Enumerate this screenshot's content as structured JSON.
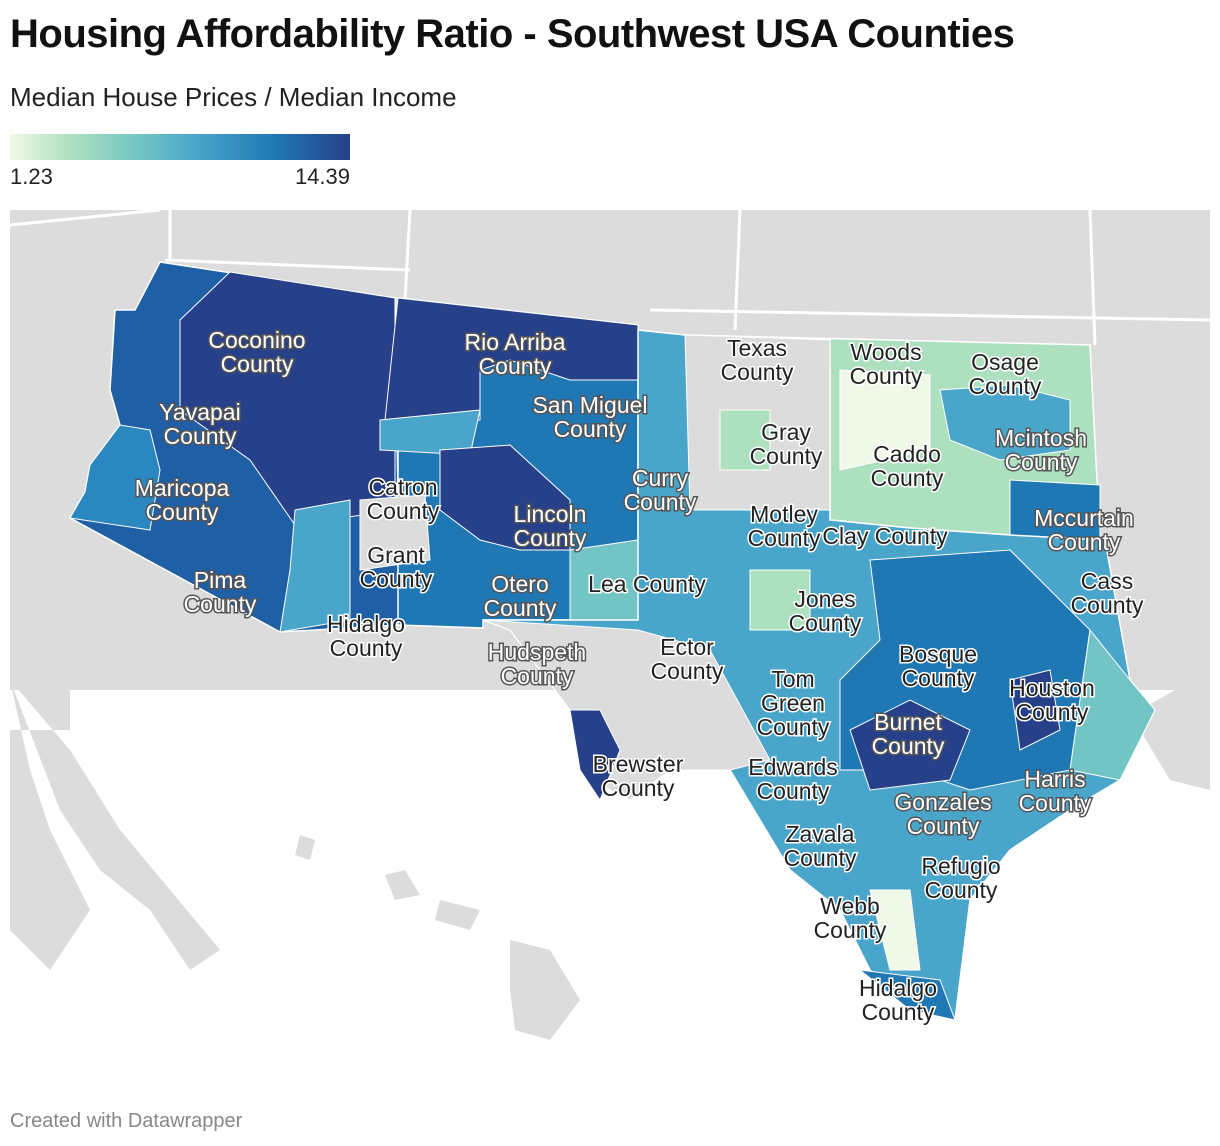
{
  "title": "Housing Affordability Ratio - Southwest USA Counties",
  "subtitle": "Median House Prices / Median Income",
  "legend": {
    "min": "1.23",
    "max": "14.39",
    "colors": [
      "#f0f9e8",
      "#ade0bf",
      "#72c5c4",
      "#4aa5ca",
      "#1f78b4",
      "#26408a"
    ]
  },
  "labels": [
    {
      "line1": "Coconino",
      "line2": "County"
    },
    {
      "line1": "Rio Arriba",
      "line2": "County"
    },
    {
      "line1": "San Miguel",
      "line2": "County"
    },
    {
      "line1": "Yavapai",
      "line2": "County"
    },
    {
      "line1": "Maricopa",
      "line2": "County"
    },
    {
      "line1": "Catron",
      "line2": "County"
    },
    {
      "line1": "Grant",
      "line2": "County"
    },
    {
      "line1": "Lincoln",
      "line2": "County"
    },
    {
      "line1": "Curry",
      "line2": "County"
    },
    {
      "line1": "Pima",
      "line2": "County"
    },
    {
      "line1": "Hidalgo",
      "line2": "County"
    },
    {
      "line1": "Otero",
      "line2": "County"
    },
    {
      "line1": "Lea County",
      "line2": ""
    },
    {
      "line1": "Hudspeth",
      "line2": "County"
    },
    {
      "line1": "Texas",
      "line2": "County"
    },
    {
      "line1": "Woods",
      "line2": "County"
    },
    {
      "line1": "Osage",
      "line2": "County"
    },
    {
      "line1": "Gray",
      "line2": "County"
    },
    {
      "line1": "Caddo",
      "line2": "County"
    },
    {
      "line1": "Mcintosh",
      "line2": "County"
    },
    {
      "line1": "Motley",
      "line2": "County"
    },
    {
      "line1": "Clay County",
      "line2": ""
    },
    {
      "line1": "Mccurtain",
      "line2": "County"
    },
    {
      "line1": "Cass",
      "line2": "County"
    },
    {
      "line1": "Jones",
      "line2": "County"
    },
    {
      "line1": "Ector",
      "line2": "County"
    },
    {
      "line1": "Bosque",
      "line2": "County"
    },
    {
      "line1": "Houston",
      "line2": "County"
    },
    {
      "line1": "Tom",
      "line2": "Green"
    },
    {
      "line1": "Burnet",
      "line2": "County"
    },
    {
      "line1": "Brewster",
      "line2": "County"
    },
    {
      "line1": "Edwards",
      "line2": "County"
    },
    {
      "line1": "Harris",
      "line2": "County"
    },
    {
      "line1": "Gonzales",
      "line2": "County"
    },
    {
      "line1": "Zavala",
      "line2": "County"
    },
    {
      "line1": "Refugio",
      "line2": "County"
    },
    {
      "line1": "Webb",
      "line2": "County"
    },
    {
      "line1": "Hidalgo",
      "line2": "County"
    }
  ],
  "tom_green_line3": "County",
  "footer": "Created with Datawrapper"
}
